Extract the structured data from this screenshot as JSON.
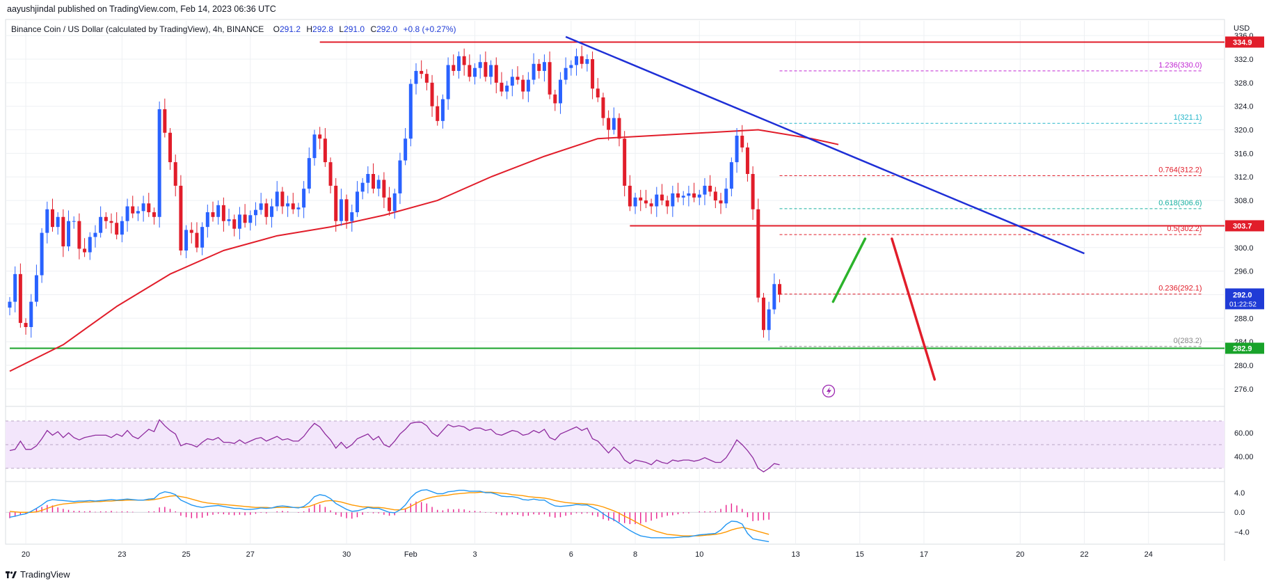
{
  "header": {
    "publish_line": "aayushjindal published on TradingView.com, Feb 14, 2023 06:36 UTC",
    "symbol_line": "Binance Coin / US Dollar (calculated by TradingView), 4h, BINANCE",
    "ohlc": {
      "open_label": "O",
      "open": "291.2",
      "high_label": "H",
      "high": "292.8",
      "low_label": "L",
      "low": "291.0",
      "close_label": "C",
      "close": "292.0",
      "change": "+0.8 (+0.27%)"
    }
  },
  "footer": {
    "brand": "TradingView"
  },
  "colors": {
    "up": "#2962ff",
    "down": "#e11d2a",
    "ma": "#e11d2a",
    "trendline": "#1e2fd6",
    "support": "#18a32a",
    "rsi": "#8e2a9e",
    "rsi_band": "#f3e6fb",
    "macd_line": "#2196f3",
    "signal_line": "#ff9800",
    "hist": "#e91e8c",
    "grid": "#eef0f3"
  },
  "chart_data": {
    "type": "candlestick",
    "pair": "BNB/USD",
    "timeframe": "4h",
    "currency_label": "USD",
    "y_ticks": [
      276.0,
      280.0,
      284.0,
      288.0,
      292.0,
      296.0,
      300.0,
      304.0,
      308.0,
      312.0,
      316.0,
      320.0,
      324.0,
      328.0,
      332.0,
      336.0
    ],
    "ylim": [
      273.5,
      338.5
    ],
    "x_ticks": [
      {
        "label": "20",
        "bar": 3
      },
      {
        "label": "23",
        "bar": 21
      },
      {
        "label": "25",
        "bar": 33
      },
      {
        "label": "27",
        "bar": 45
      },
      {
        "label": "30",
        "bar": 63
      },
      {
        "label": "Feb",
        "bar": 75
      },
      {
        "label": "3",
        "bar": 87
      },
      {
        "label": "6",
        "bar": 105
      },
      {
        "label": "8",
        "bar": 117
      },
      {
        "label": "10",
        "bar": 129
      },
      {
        "label": "13",
        "bar": 147
      },
      {
        "label": "15",
        "bar": 159
      },
      {
        "label": "17",
        "bar": 171
      },
      {
        "label": "20",
        "bar": 189
      },
      {
        "label": "22",
        "bar": 201
      },
      {
        "label": "24",
        "bar": 213
      }
    ],
    "total_slots": 228,
    "candles_close": [
      290.8,
      295.5,
      287.2,
      286.5,
      290.8,
      295.3,
      302.5,
      306.5,
      303.5,
      305.2,
      300.2,
      304.5,
      304.5,
      299.8,
      299.2,
      301.8,
      302.5,
      305.2,
      304.5,
      304.2,
      302.2,
      304.5,
      307.0,
      305.8,
      306.2,
      307.5,
      306.0,
      305.2,
      323.5,
      319.5,
      314.5,
      310.5,
      299.5,
      303.0,
      302.5,
      300.0,
      303.5,
      306.0,
      305.2,
      307.2,
      304.5,
      304.8,
      303.2,
      305.6,
      304.2,
      305.5,
      306.4,
      307.5,
      305.2,
      307.0,
      309.5,
      307.0,
      307.5,
      306.5,
      306.8,
      310.0,
      315.2,
      319.2,
      318.5,
      314.5,
      310.5,
      304.5,
      308.2,
      304.5,
      306.0,
      309.5,
      311.0,
      312.5,
      310.0,
      311.5,
      308.5,
      306.2,
      309.2,
      314.8,
      318.5,
      327.8,
      330.0,
      329.5,
      328.0,
      324.0,
      321.5,
      325.2,
      331.0,
      330.0,
      332.5,
      331.0,
      329.0,
      330.5,
      331.5,
      329.0,
      331.0,
      328.0,
      326.5,
      327.5,
      329.0,
      328.5,
      326.5,
      328.5,
      331.2,
      330.0,
      331.5,
      326.0,
      324.5,
      328.5,
      330.5,
      331.0,
      332.5,
      331.2,
      332.0,
      327.0,
      325.5,
      322.0,
      320.0,
      322.0,
      318.5,
      310.5,
      307.0,
      308.5,
      308.0,
      307.5,
      307.0,
      309.0,
      308.0,
      307.0,
      309.2,
      308.5,
      308.8,
      309.2,
      308.5,
      309.0,
      310.5,
      309.5,
      308.0,
      307.5,
      310.0,
      314.5,
      319.0,
      317.0,
      312.5,
      306.5,
      291.5,
      286.0,
      289.5,
      293.8,
      292.0
    ],
    "ma_100_sample": [
      {
        "bar": 0,
        "value": 279.0
      },
      {
        "bar": 10,
        "value": 283.5
      },
      {
        "bar": 20,
        "value": 290.0
      },
      {
        "bar": 30,
        "value": 295.5
      },
      {
        "bar": 40,
        "value": 299.5
      },
      {
        "bar": 50,
        "value": 302.0
      },
      {
        "bar": 60,
        "value": 303.5
      },
      {
        "bar": 70,
        "value": 305.5
      },
      {
        "bar": 80,
        "value": 308.0
      },
      {
        "bar": 90,
        "value": 312.0
      },
      {
        "bar": 100,
        "value": 315.5
      },
      {
        "bar": 110,
        "value": 318.5
      },
      {
        "bar": 120,
        "value": 319.0
      },
      {
        "bar": 130,
        "value": 319.5
      },
      {
        "bar": 140,
        "value": 320.0
      },
      {
        "bar": 150,
        "value": 318.5
      },
      {
        "bar": 155,
        "value": 317.5
      }
    ],
    "horizontal_levels": [
      {
        "name": "resistance-high",
        "value": 334.9,
        "label": "334.9",
        "color": "#e11d2a",
        "from_bar": 58
      },
      {
        "name": "resistance-mid",
        "value": 303.7,
        "label": "303.7",
        "color": "#e11d2a",
        "from_bar": 116
      },
      {
        "name": "support",
        "value": 282.9,
        "label": "282.9",
        "color": "#18a32a",
        "from_bar": 0
      }
    ],
    "trendline": {
      "from": {
        "bar": 104,
        "value": 335.8
      },
      "to": {
        "bar": 201,
        "value": 299.0
      }
    },
    "fibonacci": {
      "from_bar": 144,
      "to_bar": 223,
      "levels": [
        {
          "ratio": "1.236",
          "value": 330.0,
          "color": "#c026d3"
        },
        {
          "ratio": "1",
          "value": 321.1,
          "color": "#22b5c9"
        },
        {
          "ratio": "0.764",
          "value": 312.2,
          "color": "#e11d2a"
        },
        {
          "ratio": "0.618",
          "value": 306.6,
          "color": "#18b0a0"
        },
        {
          "ratio": "0.5",
          "value": 302.2,
          "color": "#e11d2a"
        },
        {
          "ratio": "0.236",
          "value": 292.1,
          "color": "#e11d2a"
        },
        {
          "ratio": "0",
          "value": 283.2,
          "color": "#888888"
        }
      ]
    },
    "scenario_arrows": [
      {
        "name": "bullish-path",
        "color": "#2bb32b",
        "from": {
          "bar": 154,
          "value": 290.8
        },
        "to": {
          "bar": 160,
          "value": 301.5
        }
      },
      {
        "name": "bearish-path",
        "color": "#e11d2a",
        "from": {
          "bar": 165,
          "value": 301.5
        },
        "to": {
          "bar": 173,
          "value": 277.6
        }
      }
    ],
    "price_tags": [
      {
        "value": 292.0,
        "label": "292.0",
        "countdown": "01:22:52",
        "color": "#1f3bd6"
      }
    ],
    "rsi": {
      "y_ticks": [
        60.0,
        40.0
      ],
      "ylim": [
        20,
        80
      ],
      "band": [
        30,
        70
      ],
      "values": [
        45,
        46,
        53,
        46,
        46,
        49,
        55,
        62,
        58,
        61,
        56,
        60,
        56,
        54,
        56,
        57,
        58,
        58,
        58,
        56,
        59,
        57,
        62,
        57,
        55,
        59,
        63,
        61,
        71,
        66,
        62,
        59,
        49,
        51,
        50,
        48,
        52,
        55,
        54,
        56,
        52,
        52,
        51,
        54,
        51,
        53,
        55,
        56,
        53,
        55,
        57,
        54,
        55,
        53,
        53,
        57,
        63,
        68,
        65,
        59,
        54,
        47,
        52,
        47,
        50,
        55,
        57,
        59,
        54,
        57,
        50,
        48,
        53,
        59,
        63,
        68,
        69,
        69,
        66,
        60,
        57,
        62,
        67,
        65,
        66,
        65,
        62,
        64,
        64,
        62,
        63,
        59,
        58,
        60,
        62,
        61,
        58,
        59,
        62,
        60,
        63,
        56,
        54,
        59,
        61,
        63,
        65,
        62,
        64,
        55,
        53,
        48,
        43,
        48,
        44,
        37,
        34,
        37,
        36,
        35,
        33,
        37,
        35,
        34,
        37,
        36,
        37,
        37,
        36,
        37,
        39,
        37,
        35,
        35,
        39,
        46,
        54,
        50,
        45,
        39,
        30,
        27,
        30,
        34,
        33
      ]
    },
    "macd": {
      "y_ticks": [
        4.0,
        0.0,
        -4.0
      ],
      "ylim": [
        -6.5,
        6.0
      ],
      "macd_values": [
        -1.0,
        -0.8,
        -0.5,
        -0.3,
        0.2,
        0.8,
        1.5,
        2.3,
        2.6,
        2.5,
        2.4,
        2.3,
        2.2,
        2.3,
        2.3,
        2.4,
        2.3,
        2.4,
        2.5,
        2.6,
        2.5,
        2.6,
        2.7,
        2.6,
        2.5,
        2.5,
        2.7,
        2.8,
        3.8,
        4.2,
        4.0,
        3.6,
        2.5,
        2.0,
        1.5,
        1.2,
        1.0,
        1.2,
        1.3,
        1.4,
        1.2,
        1.0,
        0.8,
        0.8,
        0.6,
        0.6,
        0.7,
        0.9,
        0.8,
        0.9,
        1.2,
        1.3,
        1.2,
        1.0,
        0.9,
        1.2,
        2.0,
        3.2,
        3.6,
        3.4,
        2.8,
        1.8,
        1.2,
        0.6,
        0.2,
        0.3,
        0.6,
        1.0,
        0.8,
        0.8,
        0.4,
        0.0,
        -0.1,
        0.5,
        1.5,
        3.0,
        4.0,
        4.5,
        4.6,
        4.2,
        3.8,
        3.8,
        4.2,
        4.3,
        4.5,
        4.5,
        4.3,
        4.3,
        4.3,
        4.0,
        4.0,
        3.7,
        3.3,
        3.2,
        3.2,
        3.0,
        2.6,
        2.5,
        2.7,
        2.5,
        2.5,
        1.8,
        1.3,
        1.2,
        1.3,
        1.4,
        1.6,
        1.5,
        1.5,
        1.0,
        0.5,
        -0.3,
        -1.0,
        -1.5,
        -2.2,
        -3.0,
        -3.7,
        -4.3,
        -4.8,
        -5.0,
        -5.2,
        -5.2,
        -5.2,
        -5.2,
        -5.2,
        -5.1,
        -5.0,
        -5.0,
        -4.8,
        -4.6,
        -4.5,
        -4.4,
        -4.3,
        -3.6,
        -2.5,
        -1.8,
        -1.9,
        -2.4,
        -4.3,
        -5.4,
        -5.6,
        -5.8,
        -6.0
      ],
      "signal_values": [
        0.2,
        0.1,
        0.0,
        0.0,
        0.0,
        0.1,
        0.4,
        0.8,
        1.2,
        1.5,
        1.7,
        1.8,
        1.9,
        2.0,
        2.1,
        2.1,
        2.2,
        2.2,
        2.3,
        2.3,
        2.4,
        2.4,
        2.5,
        2.5,
        2.5,
        2.5,
        2.5,
        2.6,
        2.8,
        3.1,
        3.3,
        3.4,
        3.2,
        3.0,
        2.7,
        2.4,
        2.1,
        1.9,
        1.8,
        1.7,
        1.6,
        1.5,
        1.4,
        1.3,
        1.2,
        1.1,
        1.0,
        1.0,
        1.0,
        0.9,
        1.0,
        1.0,
        1.0,
        1.0,
        1.0,
        1.0,
        1.2,
        1.6,
        2.0,
        2.3,
        2.4,
        2.3,
        2.1,
        1.8,
        1.5,
        1.3,
        1.1,
        1.1,
        1.0,
        1.0,
        0.9,
        0.7,
        0.5,
        0.5,
        0.7,
        1.2,
        1.8,
        2.4,
        2.8,
        3.1,
        3.3,
        3.4,
        3.5,
        3.7,
        3.8,
        3.9,
        4.0,
        4.0,
        4.1,
        4.1,
        4.1,
        4.0,
        3.9,
        3.8,
        3.6,
        3.5,
        3.4,
        3.2,
        3.1,
        3.0,
        2.9,
        2.7,
        2.4,
        2.2,
        2.0,
        1.9,
        1.8,
        1.8,
        1.7,
        1.6,
        1.4,
        1.1,
        0.7,
        0.3,
        -0.2,
        -0.8,
        -1.3,
        -1.9,
        -2.5,
        -3.0,
        -3.5,
        -3.9,
        -4.2,
        -4.5,
        -4.6,
        -4.7,
        -4.8,
        -4.8,
        -4.8,
        -4.8,
        -4.7,
        -4.6,
        -4.5,
        -4.3,
        -4.0,
        -3.6,
        -3.3,
        -3.1,
        -3.3,
        -3.6,
        -3.9,
        -4.2,
        -4.5
      ]
    }
  }
}
